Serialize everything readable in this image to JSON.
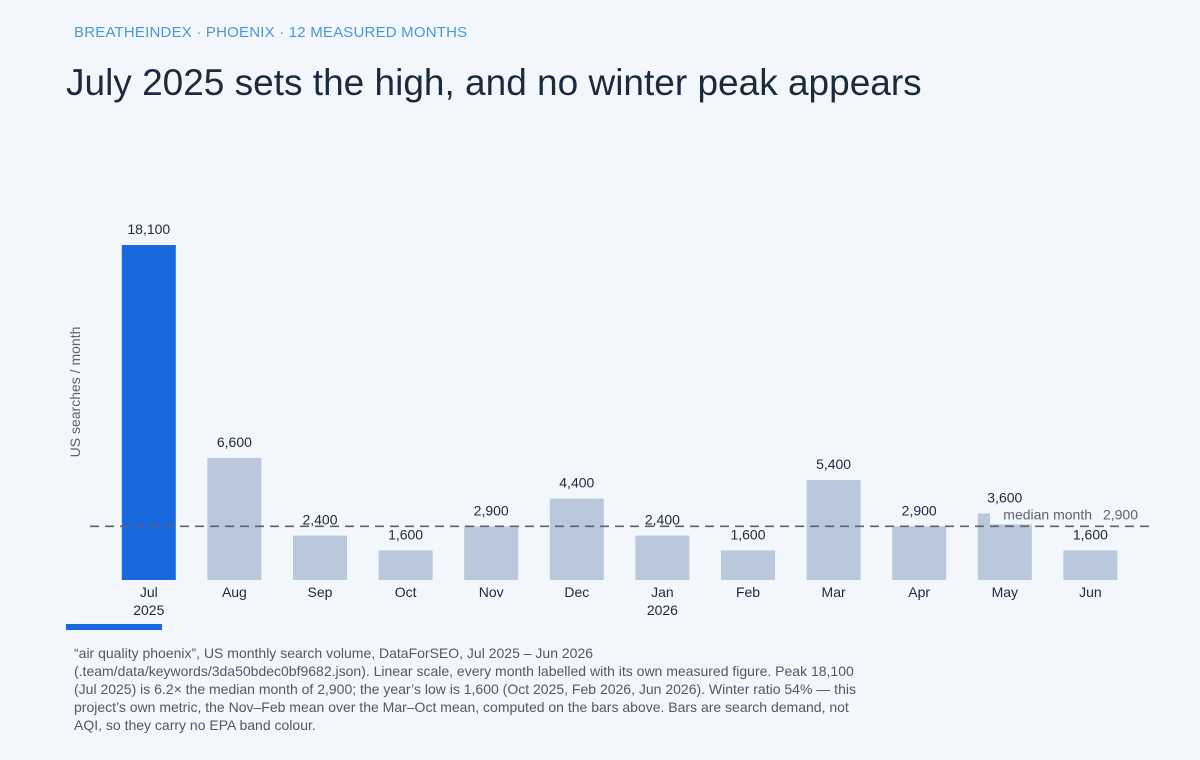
{
  "header": {
    "kicker": "BREATHEINDEX · PHOENIX · 12 MEASURED MONTHS",
    "title": "July 2025 sets the high, and no winter peak appears"
  },
  "caption": "“air quality phoenix”, US monthly search volume, DataForSEO, Jul 2025 – Jun 2026 (.team/data/keywords/3da50bdec0bf9682.json). Linear scale, every month labelled with its own measured figure. Peak 18,100 (Jul 2025) is 6.2× the median month of 2,900; the year’s low is 1,600 (Oct 2025, Feb 2026, Jun 2026). Winter ratio 54% — this project’s own metric, the Nov–Feb mean over the Mar–Oct mean, computed on the bars above. Bars are search demand, not AQI, so they carry no EPA band colour.",
  "colors": {
    "highlight_bar": "#1a68de",
    "bar": "#b9c9db",
    "median_line": "#5b6470",
    "accent": "#1a68de"
  },
  "chart_data": {
    "type": "bar",
    "categories": [
      "Jul",
      "Aug",
      "Sep",
      "Oct",
      "Nov",
      "Dec",
      "Jan",
      "Feb",
      "Mar",
      "Apr",
      "May",
      "Jun"
    ],
    "category_sublabels": [
      "2025",
      "",
      "",
      "",
      "",
      "",
      "2026",
      "",
      "",
      "",
      "",
      ""
    ],
    "values": [
      18100,
      6600,
      2400,
      1600,
      2900,
      4400,
      2400,
      1600,
      5400,
      2900,
      3600,
      1600
    ],
    "value_labels": [
      "18,100",
      "6,600",
      "2,400",
      "1,600",
      "2,900",
      "4,400",
      "2,400",
      "1,600",
      "5,400",
      "2,900",
      "3,600",
      "1,600"
    ],
    "highlight_index": 0,
    "ylabel": "US searches / month",
    "ylim": [
      0,
      18100
    ],
    "grid": false,
    "reference_line": {
      "value": 2900,
      "label": "median month",
      "value_label": "2,900"
    }
  }
}
